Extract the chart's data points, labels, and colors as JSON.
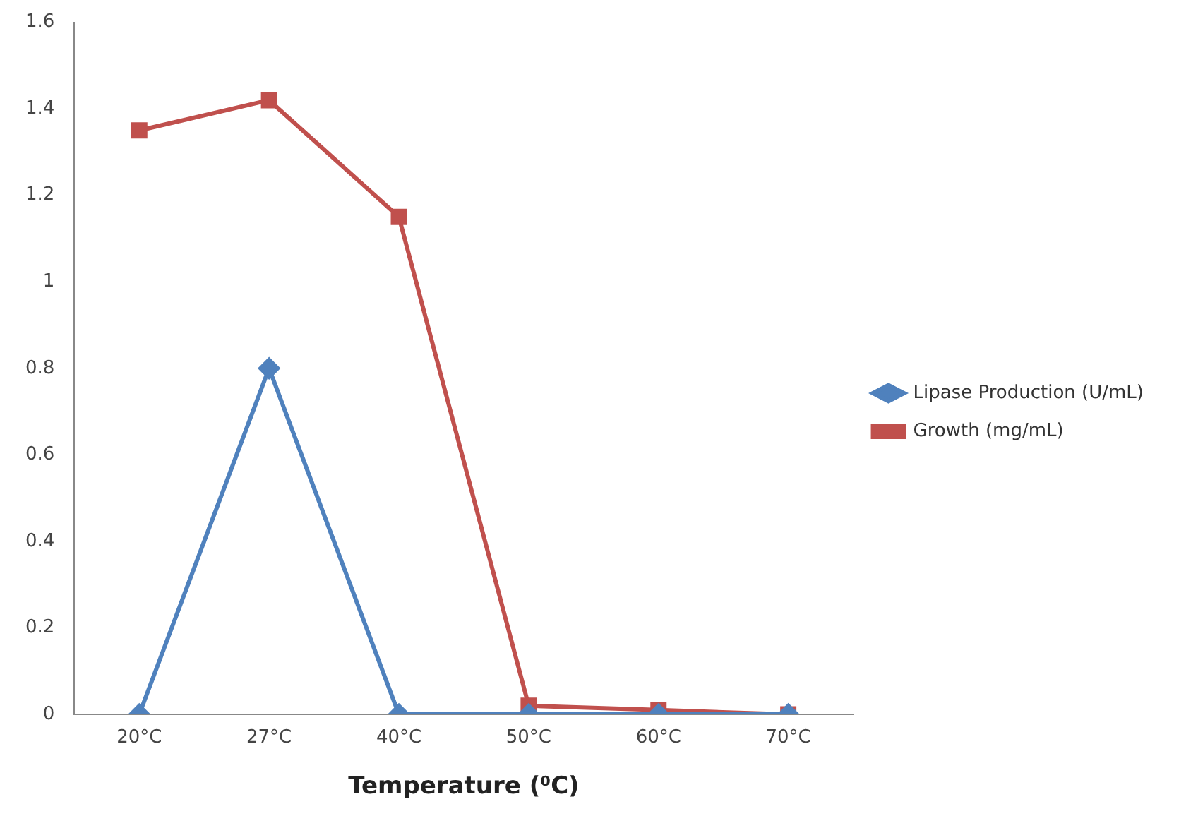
{
  "chart_data": {
    "type": "line",
    "xlabel": "Temperature (⁰C)",
    "categories": [
      "20°C",
      "27°C",
      "40°C",
      "50°C",
      "60°C",
      "70°C"
    ],
    "series": [
      {
        "name": "Lipase Production (U/mL)",
        "color": "#4f81bd",
        "marker": "diamond",
        "values": [
          0,
          0.8,
          0,
          0,
          0,
          0
        ]
      },
      {
        "name": "Growth (mg/mL)",
        "color": "#c0504d",
        "marker": "square",
        "values": [
          1.35,
          1.42,
          1.15,
          0.02,
          0.01,
          0
        ]
      }
    ],
    "ylim": [
      0,
      1.6
    ],
    "yticks": [
      0,
      0.2,
      0.4,
      0.6,
      0.8,
      1,
      1.2,
      1.4,
      1.6
    ],
    "grid": false,
    "legend": "right",
    "line_style": "solid"
  }
}
